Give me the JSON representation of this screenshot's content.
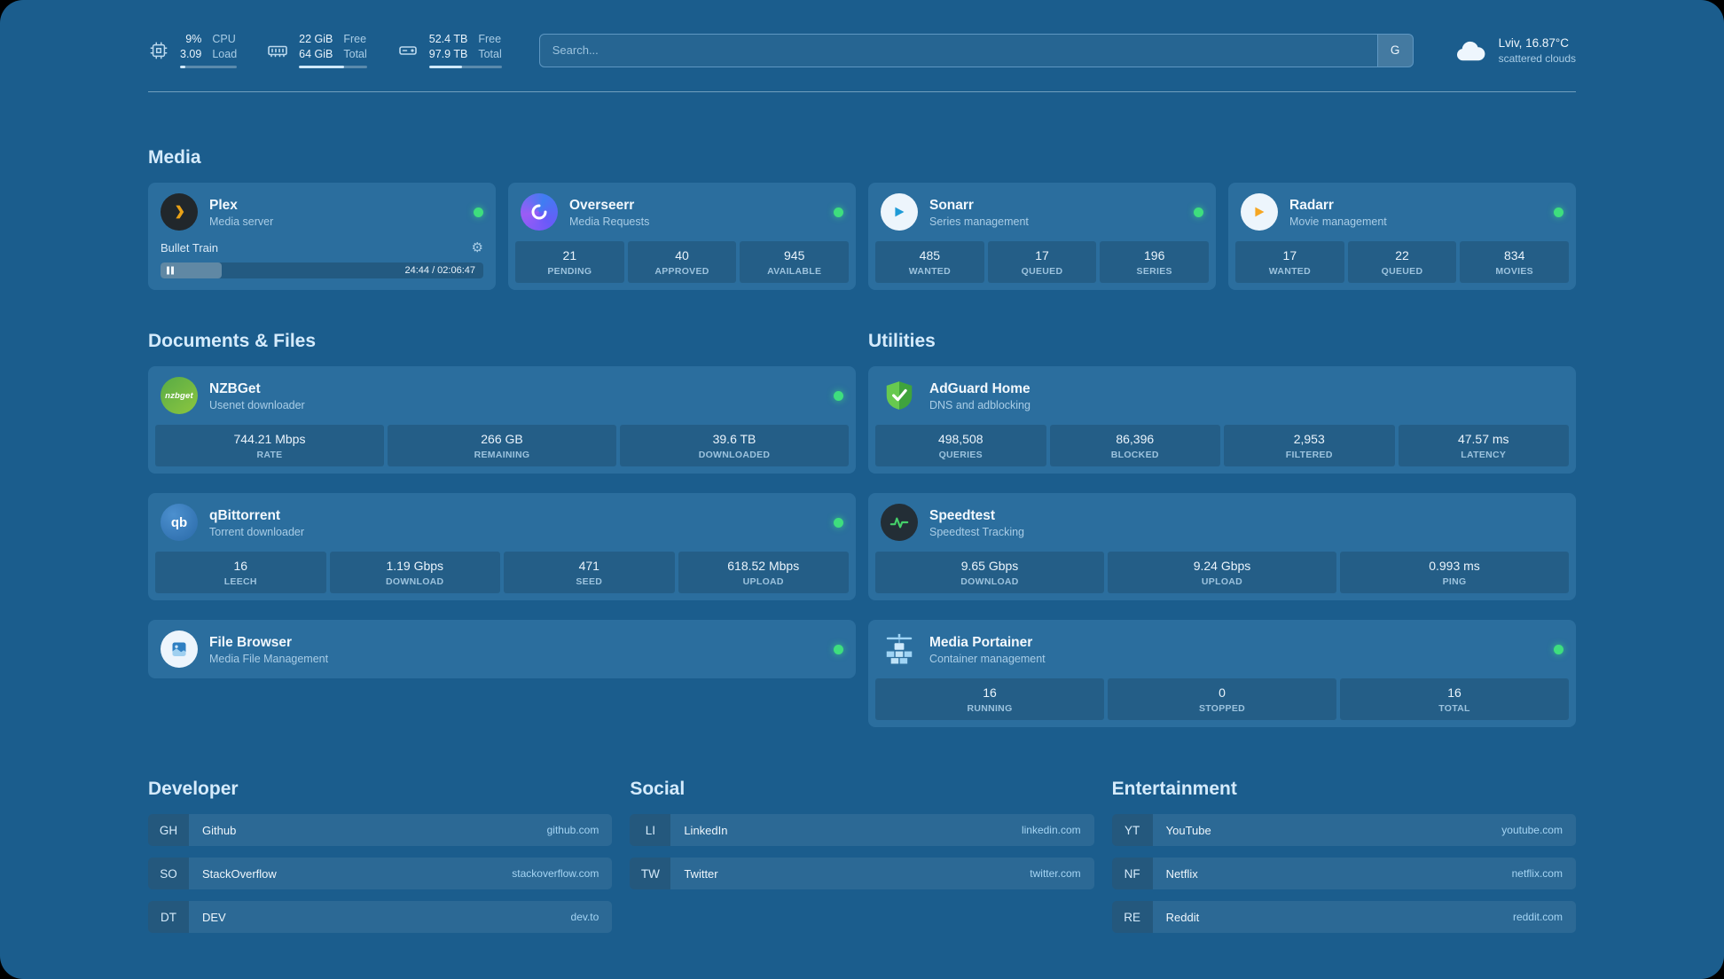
{
  "topbar": {
    "resources": [
      {
        "icon": "cpu-icon",
        "rows": [
          {
            "value": "9%",
            "label": "CPU"
          },
          {
            "value": "3.09",
            "label": "Load"
          }
        ],
        "progress": 9
      },
      {
        "icon": "memory-icon",
        "rows": [
          {
            "value": "22 GiB",
            "label": "Free"
          },
          {
            "value": "64 GiB",
            "label": "Total"
          }
        ],
        "progress": 66
      },
      {
        "icon": "disk-icon",
        "rows": [
          {
            "value": "52.4 TB",
            "label": "Free"
          },
          {
            "value": "97.9 TB",
            "label": "Total"
          }
        ],
        "progress": 46
      }
    ],
    "search": {
      "placeholder": "Search...",
      "button": "G"
    },
    "weather": {
      "location": "Lviv, 16.87°C",
      "condition": "scattered clouds"
    }
  },
  "sections": {
    "media": {
      "title": "Media",
      "cards": [
        {
          "name": "Plex",
          "subtitle": "Media server",
          "player": {
            "track": "Bullet Train",
            "time": "24:44 / 02:06:47",
            "progress": 19
          }
        },
        {
          "name": "Overseerr",
          "subtitle": "Media Requests",
          "stats": [
            {
              "value": "21",
              "label": "PENDING"
            },
            {
              "value": "40",
              "label": "APPROVED"
            },
            {
              "value": "945",
              "label": "AVAILABLE"
            }
          ]
        },
        {
          "name": "Sonarr",
          "subtitle": "Series management",
          "stats": [
            {
              "value": "485",
              "label": "WANTED"
            },
            {
              "value": "17",
              "label": "QUEUED"
            },
            {
              "value": "196",
              "label": "SERIES"
            }
          ]
        },
        {
          "name": "Radarr",
          "subtitle": "Movie management",
          "stats": [
            {
              "value": "17",
              "label": "WANTED"
            },
            {
              "value": "22",
              "label": "QUEUED"
            },
            {
              "value": "834",
              "label": "MOVIES"
            }
          ]
        }
      ]
    },
    "documents": {
      "title": "Documents & Files",
      "cards": [
        {
          "name": "NZBGet",
          "subtitle": "Usenet downloader",
          "stats": [
            {
              "value": "744.21 Mbps",
              "label": "RATE"
            },
            {
              "value": "266 GB",
              "label": "REMAINING"
            },
            {
              "value": "39.6 TB",
              "label": "DOWNLOADED"
            }
          ]
        },
        {
          "name": "qBittorrent",
          "subtitle": "Torrent downloader",
          "stats": [
            {
              "value": "16",
              "label": "LEECH"
            },
            {
              "value": "1.19 Gbps",
              "label": "DOWNLOAD"
            },
            {
              "value": "471",
              "label": "SEED"
            },
            {
              "value": "618.52 Mbps",
              "label": "UPLOAD"
            }
          ]
        },
        {
          "name": "File Browser",
          "subtitle": "Media File Management",
          "stats": []
        }
      ]
    },
    "utilities": {
      "title": "Utilities",
      "cards": [
        {
          "name": "AdGuard Home",
          "subtitle": "DNS and adblocking",
          "stats": [
            {
              "value": "498,508",
              "label": "QUERIES"
            },
            {
              "value": "86,396",
              "label": "BLOCKED"
            },
            {
              "value": "2,953",
              "label": "FILTERED"
            },
            {
              "value": "47.57 ms",
              "label": "LATENCY"
            }
          ]
        },
        {
          "name": "Speedtest",
          "subtitle": "Speedtest Tracking",
          "stats": [
            {
              "value": "9.65 Gbps",
              "label": "DOWNLOAD"
            },
            {
              "value": "9.24 Gbps",
              "label": "UPLOAD"
            },
            {
              "value": "0.993 ms",
              "label": "PING"
            }
          ]
        },
        {
          "name": "Media Portainer",
          "subtitle": "Container management",
          "stats": [
            {
              "value": "16",
              "label": "RUNNING"
            },
            {
              "value": "0",
              "label": "STOPPED"
            },
            {
              "value": "16",
              "label": "TOTAL"
            }
          ]
        }
      ]
    }
  },
  "bookmarks": [
    {
      "title": "Developer",
      "items": [
        {
          "abbr": "GH",
          "name": "Github",
          "url": "github.com"
        },
        {
          "abbr": "SO",
          "name": "StackOverflow",
          "url": "stackoverflow.com"
        },
        {
          "abbr": "DT",
          "name": "DEV",
          "url": "dev.to"
        }
      ]
    },
    {
      "title": "Social",
      "items": [
        {
          "abbr": "LI",
          "name": "LinkedIn",
          "url": "linkedin.com"
        },
        {
          "abbr": "TW",
          "name": "Twitter",
          "url": "twitter.com"
        }
      ]
    },
    {
      "title": "Entertainment",
      "items": [
        {
          "abbr": "YT",
          "name": "YouTube",
          "url": "youtube.com"
        },
        {
          "abbr": "NF",
          "name": "Netflix",
          "url": "netflix.com"
        },
        {
          "abbr": "RE",
          "name": "Reddit",
          "url": "reddit.com"
        }
      ]
    }
  ]
}
